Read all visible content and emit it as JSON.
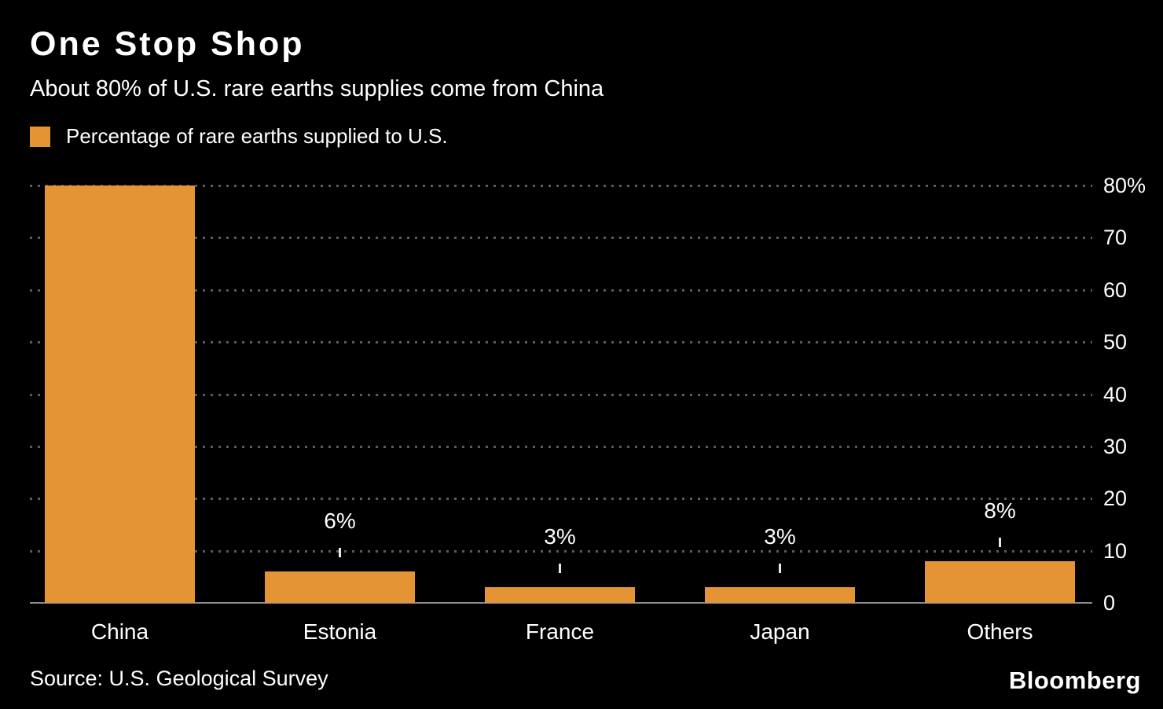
{
  "header": {
    "title": "One Stop Shop",
    "subtitle": "About 80% of U.S. rare earths supplies come from China",
    "legend_label": "Percentage of rare earths supplied to U.S."
  },
  "footer": {
    "source": "Source: U.S. Geological Survey",
    "brand": "Bloomberg"
  },
  "colors": {
    "background": "#000000",
    "bar": "#E49434",
    "text": "#FFFFFF",
    "gridline": "#5C5C5C",
    "axis_line": "#8A8A8A"
  },
  "chart_data": {
    "type": "bar",
    "title": "One Stop Shop",
    "subtitle": "About 80% of U.S. rare earths supplies come from China",
    "legend": "Percentage of rare earths supplied to U.S.",
    "legend_position": "top-left",
    "categories": [
      "China",
      "Estonia",
      "France",
      "Japan",
      "Others"
    ],
    "values": [
      80,
      6,
      3,
      3,
      8
    ],
    "value_labels": [
      "",
      "6%",
      "3%",
      "3%",
      "8%"
    ],
    "xlabel": "",
    "ylabel": "",
    "ylim": [
      0,
      80
    ],
    "yticks": [
      0,
      10,
      20,
      30,
      40,
      50,
      60,
      70,
      80
    ],
    "ytick_labels": [
      "0",
      "10",
      "20",
      "30",
      "40",
      "50",
      "60",
      "70",
      "80%"
    ],
    "axis_side": "right",
    "grid": "horizontal-dotted"
  }
}
